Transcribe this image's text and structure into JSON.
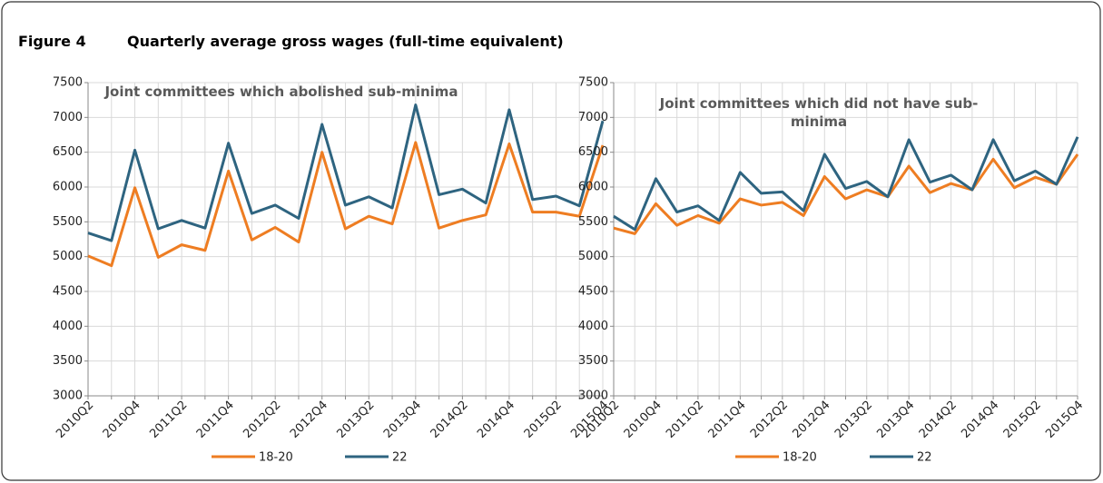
{
  "figure": {
    "label": "Figure 4",
    "title": "Quarterly average gross wages (full-time equivalent)"
  },
  "chart_data": [
    {
      "type": "line",
      "title": "Joint committees which abolished sub-minima",
      "categories": [
        "2010Q2",
        null,
        "2010Q4",
        null,
        "2011Q2",
        null,
        "2011Q4",
        null,
        "2012Q2",
        null,
        "2012Q4",
        null,
        "2013Q2",
        null,
        "2013Q4",
        null,
        "2014Q2",
        null,
        "2014Q4",
        null,
        "2015Q2",
        null,
        "2015Q4"
      ],
      "series": [
        {
          "name": "18-20",
          "color": "#ee7d22",
          "values": [
            5010,
            4870,
            5990,
            4990,
            5170,
            5090,
            6230,
            5240,
            5420,
            5210,
            6500,
            5400,
            5580,
            5470,
            6640,
            5410,
            5520,
            5600,
            6620,
            5640,
            5640,
            5580,
            6600
          ]
        },
        {
          "name": "22",
          "color": "#2e6480",
          "values": [
            5340,
            5230,
            6530,
            5400,
            5520,
            5410,
            6630,
            5620,
            5740,
            5550,
            6900,
            5740,
            5860,
            5700,
            7180,
            5890,
            5970,
            5770,
            7110,
            5820,
            5870,
            5730,
            6950
          ]
        }
      ],
      "ylim": [
        3000,
        7500
      ],
      "yticks": [
        3000,
        3500,
        4000,
        4500,
        5000,
        5500,
        6000,
        6500,
        7000,
        7500
      ],
      "grid": true,
      "legend": "bottom"
    },
    {
      "type": "line",
      "title": "Joint committees which did not have sub-minima",
      "categories": [
        "2010Q2",
        null,
        "2010Q4",
        null,
        "2011Q2",
        null,
        "2011Q4",
        null,
        "2012Q2",
        null,
        "2012Q4",
        null,
        "2013Q2",
        null,
        "2013Q4",
        null,
        "2014Q2",
        null,
        "2014Q4",
        null,
        "2015Q2",
        null,
        "2015Q4"
      ],
      "series": [
        {
          "name": "18-20",
          "color": "#ee7d22",
          "values": [
            5410,
            5330,
            5760,
            5450,
            5590,
            5480,
            5830,
            5740,
            5780,
            5590,
            6150,
            5830,
            5960,
            5860,
            6300,
            5920,
            6050,
            5960,
            6400,
            5990,
            6140,
            6040,
            6470
          ]
        },
        {
          "name": "22",
          "color": "#2e6480",
          "values": [
            5580,
            5390,
            6120,
            5640,
            5730,
            5520,
            6210,
            5910,
            5930,
            5660,
            6470,
            5980,
            6080,
            5860,
            6680,
            6070,
            6170,
            5960,
            6680,
            6090,
            6230,
            6040,
            6720
          ]
        }
      ],
      "ylim": [
        3000,
        7500
      ],
      "yticks": [
        3000,
        3500,
        4000,
        4500,
        5000,
        5500,
        6000,
        6500,
        7000,
        7500
      ],
      "grid": true,
      "legend": "bottom"
    }
  ]
}
